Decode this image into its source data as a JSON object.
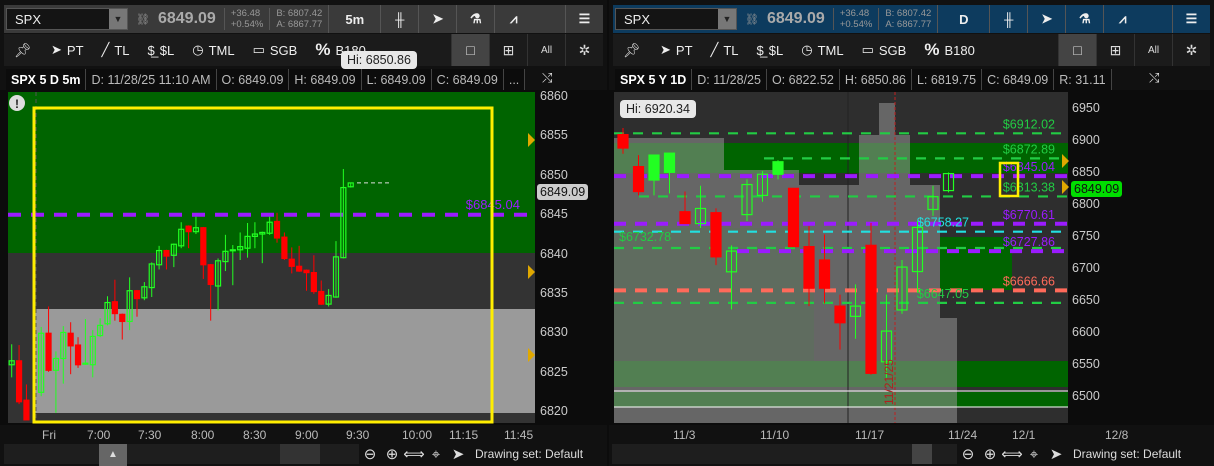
{
  "left": {
    "symbol": "SPX",
    "last": "6849.09",
    "change": "+36.48",
    "change_pct": "+0.54%",
    "bid": "B: 6807.42",
    "ask": "A: 6867.77",
    "interval": "5m",
    "tools": {
      "pt": "PT",
      "tl": "TL",
      "sl": "$L",
      "tml": "TML",
      "sgb": "SGB",
      "b180": "B180",
      "all": "All"
    },
    "info": {
      "title": "SPX 5 D 5m",
      "date": "D: 11/28/25 11:10 AM",
      "open": "O: 6849.09",
      "high": "H: 6849.09",
      "low": "L: 6849.09",
      "close": "C: 6849.09",
      "more": "..."
    },
    "price_axis": [
      "6860",
      "6855",
      "6850",
      "6845",
      "6840",
      "6835",
      "6830",
      "6825",
      "6820"
    ],
    "time_axis": [
      "Fri",
      "7:00",
      "7:30",
      "8:00",
      "8:30",
      "9:00",
      "9:30",
      "10:00",
      "11:15",
      "11:45"
    ],
    "price_tag": "6849.09",
    "hi_tooltip": "Hi: 6850.86",
    "level_label": "$6845.04",
    "level_color": "#9b1bff",
    "prior_session": [
      [
        6826.0,
        6828.6,
        6824.4,
        6826.5
      ],
      [
        6826.5,
        6828.5,
        6821.0,
        6821.3
      ],
      [
        6821.5,
        6823.5,
        6819.0,
        6819.0
      ]
    ],
    "candles": [
      [
        6822.5,
        6830.8,
        6822,
        6830
      ],
      [
        6830,
        6833.4,
        6825.1,
        6825.3
      ],
      [
        6825.3,
        6827.7,
        6819.9,
        6826.8
      ],
      [
        6826.8,
        6830.9,
        6823.6,
        6830.1
      ],
      [
        6830,
        6831.4,
        6824.8,
        6828.4
      ],
      [
        6828.5,
        6829.5,
        6825.6,
        6826
      ],
      [
        6826.1,
        6831.8,
        6826,
        6826.2
      ],
      [
        6826,
        6830.4,
        6824.4,
        6829.6
      ],
      [
        6829.7,
        6831.9,
        6829.5,
        6831
      ],
      [
        6831.2,
        6834.7,
        6831,
        6833.9
      ],
      [
        6834,
        6836.8,
        6831.6,
        6832.5
      ],
      [
        6832.4,
        6832.5,
        6829.2,
        6831.5
      ],
      [
        6831.5,
        6837.1,
        6830.4,
        6835.4
      ],
      [
        6835.4,
        6835.5,
        6832.1,
        6834.4
      ],
      [
        6834.5,
        6836.5,
        6834.2,
        6835.9
      ],
      [
        6835.8,
        6839,
        6834.6,
        6838.8
      ],
      [
        6838.7,
        6841.1,
        6838.1,
        6840.5
      ],
      [
        6840.5,
        6840.6,
        6838.1,
        6839.8
      ],
      [
        6839.9,
        6841.4,
        6838.4,
        6841.3
      ],
      [
        6841.1,
        6844.1,
        6840.8,
        6843.2
      ],
      [
        6843.6,
        6843.7,
        6840.8,
        6842.9
      ],
      [
        6842.9,
        6844.8,
        6842.6,
        6843.4
      ],
      [
        6843.4,
        6843.5,
        6836.9,
        6838.7
      ],
      [
        6838.7,
        6838.8,
        6831.6,
        6836.2
      ],
      [
        6836,
        6839.5,
        6832.9,
        6839.2
      ],
      [
        6839.1,
        6842.5,
        6837.9,
        6840.4
      ],
      [
        6840.5,
        6841.2,
        6836.1,
        6840.6
      ],
      [
        6840.6,
        6842.8,
        6839.3,
        6841
      ],
      [
        6840.8,
        6844,
        6839.6,
        6842.3
      ],
      [
        6842.3,
        6844.1,
        6840.8,
        6842.6
      ],
      [
        6842.6,
        6842.9,
        6838.9,
        6842.8
      ],
      [
        6842.7,
        6844.8,
        6842.5,
        6844.1
      ],
      [
        6844.2,
        6845.3,
        6841.5,
        6842.1
      ],
      [
        6842.2,
        6842.8,
        6839.3,
        6839.5
      ],
      [
        6839.4,
        6840.9,
        6837.6,
        6838.5
      ],
      [
        6838.5,
        6841.1,
        6837.8,
        6837.9
      ],
      [
        6838,
        6838.1,
        6835.4,
        6837.7
      ],
      [
        6837.7,
        6839.9,
        6835,
        6835.3
      ],
      [
        6835.3,
        6836.7,
        6833.6,
        6833.7
      ],
      [
        6833.7,
        6835.6,
        6833.4,
        6834.8
      ],
      [
        6834.6,
        6841.7,
        6834.5,
        6839.7
      ],
      [
        6839.6,
        6850.86,
        6839.5,
        6848.5
      ],
      [
        6848.6,
        6849.1,
        6848.5,
        6849.09
      ]
    ],
    "drawing_set": "Drawing set: Default"
  },
  "right": {
    "symbol": "SPX",
    "last": "6849.09",
    "change": "+36.48",
    "change_pct": "+0.54%",
    "bid": "B: 6807.42",
    "ask": "A: 6867.77",
    "interval": "D",
    "tools": {
      "pt": "PT",
      "tl": "TL",
      "sl": "$L",
      "tml": "TML",
      "sgb": "SGB",
      "b180": "B180",
      "all": "All"
    },
    "info": {
      "title": "SPX 5 Y 1D",
      "date": "D: 11/28/25",
      "open": "O: 6822.52",
      "high": "H: 6850.86",
      "low": "L: 6819.75",
      "close": "C: 6849.09",
      "range": "R: 31.11"
    },
    "price_axis": [
      "6950",
      "6900",
      "6850",
      "6800",
      "6750",
      "6700",
      "6650",
      "6600",
      "6550",
      "6500"
    ],
    "date_axis": [
      "11/3",
      "11/10",
      "11/17",
      "11/24",
      "12/1",
      "12/8"
    ],
    "price_tag": "6849.09",
    "hi_tooltip": "Hi: 6920.34",
    "vertical_date": "11/21/25",
    "levels": [
      {
        "label": "$6912.02",
        "price": 6912.02,
        "color": "#22cc44",
        "style": "dash"
      },
      {
        "label": "$6872.89",
        "price": 6872.89,
        "color": "#22cc44",
        "style": "dash"
      },
      {
        "label": "$6845.04",
        "price": 6845.04,
        "color": "#9b1bff",
        "style": "thick"
      },
      {
        "label": "$6813.38",
        "price": 6813.38,
        "color": "#22cc44",
        "style": "dash"
      },
      {
        "label": "$6770.61",
        "price": 6770.61,
        "color": "#9b1bff",
        "style": "thick"
      },
      {
        "label": "$6758.27",
        "price": 6758.27,
        "color": "#22e0e0",
        "style": "dash"
      },
      {
        "label": "$6732.78",
        "price": 6732.78,
        "color": "#22cc44",
        "style": "dash"
      },
      {
        "label": "$6727.86",
        "price": 6727.86,
        "color": "#9b1bff",
        "style": "thick"
      },
      {
        "label": "$6666.66",
        "price": 6666.66,
        "color": "#ff6a5a",
        "style": "thick"
      },
      {
        "label": "$6647.05",
        "price": 6647.05,
        "color": "#22cc44",
        "style": "dash"
      }
    ],
    "candles": [
      [
        6910,
        6920.34,
        6880,
        6889,
        0
      ],
      [
        6860,
        6878,
        6815,
        6821,
        0
      ],
      [
        6839,
        6878,
        6815,
        6878,
        1
      ],
      [
        6851,
        6881,
        6818,
        6881,
        1
      ],
      [
        6789.5,
        6821,
        6771,
        6771,
        0
      ],
      [
        6771,
        6830,
        6764,
        6794.6,
        2
      ],
      [
        6788,
        6795,
        6706,
        6719,
        0
      ],
      [
        6695.6,
        6737,
        6637,
        6728,
        2
      ],
      [
        6785,
        6840,
        6775,
        6832,
        2
      ],
      [
        6815,
        6853,
        6805,
        6848,
        2
      ],
      [
        6848,
        6870,
        6840,
        6867.6,
        1
      ],
      [
        6826,
        6826,
        6735,
        6735,
        0
      ],
      [
        6735,
        6767,
        6642,
        6670,
        3
      ],
      [
        6714,
        6754,
        6646,
        6670,
        0
      ],
      [
        6642,
        6660,
        6574,
        6616,
        0
      ],
      [
        6626,
        6676,
        6591,
        6642,
        2
      ],
      [
        6737,
        6772,
        6535,
        6537,
        0
      ],
      [
        6555,
        6660,
        6530,
        6603,
        2
      ],
      [
        6636,
        6714,
        6630,
        6703,
        2
      ],
      [
        6696,
        6775,
        6663,
        6765,
        2
      ],
      [
        6793,
        6830,
        6783,
        6813,
        2
      ],
      [
        6822.52,
        6850.86,
        6819.75,
        6849.09,
        2
      ]
    ],
    "drawing_set": "Drawing set: Default"
  },
  "colors": {
    "up": "#22ff22",
    "down": "#ff0000",
    "highlight": "#ffee00",
    "header_left": "#3a3a3a",
    "header_right": "#0d3b5e"
  }
}
